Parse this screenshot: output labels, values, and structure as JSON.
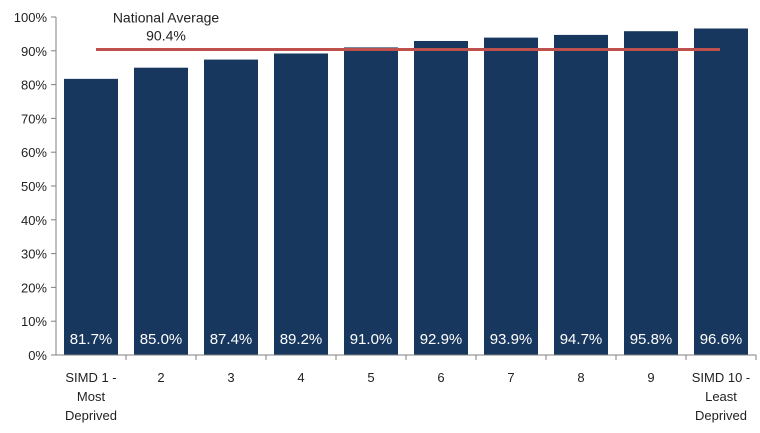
{
  "chart_data": {
    "type": "bar",
    "categories": [
      [
        "SIMD 1 -",
        "Most",
        "Deprived"
      ],
      [
        "2"
      ],
      [
        "3"
      ],
      [
        "4"
      ],
      [
        "5"
      ],
      [
        "6"
      ],
      [
        "7"
      ],
      [
        "8"
      ],
      [
        "9"
      ],
      [
        "SIMD 10 -",
        "Least",
        "Deprived"
      ]
    ],
    "values": [
      81.7,
      85.0,
      87.4,
      89.2,
      91.0,
      92.9,
      93.9,
      94.7,
      95.8,
      96.6
    ],
    "data_labels": [
      "81.7%",
      "85.0%",
      "87.4%",
      "89.2%",
      "91.0%",
      "92.9%",
      "93.9%",
      "94.7%",
      "95.8%",
      "96.6%"
    ],
    "ylim": [
      0,
      100
    ],
    "yticks": [
      0,
      10,
      20,
      30,
      40,
      50,
      60,
      70,
      80,
      90,
      100
    ],
    "ytick_labels": [
      "0%",
      "10%",
      "20%",
      "30%",
      "40%",
      "50%",
      "60%",
      "70%",
      "80%",
      "90%",
      "100%"
    ],
    "reference_line": {
      "value": 90.4,
      "label_line1": "National Average",
      "label_line2": "90.4%",
      "color": "#c0504d"
    },
    "bar_color": "#17375e",
    "grid": false,
    "legend": "none"
  }
}
